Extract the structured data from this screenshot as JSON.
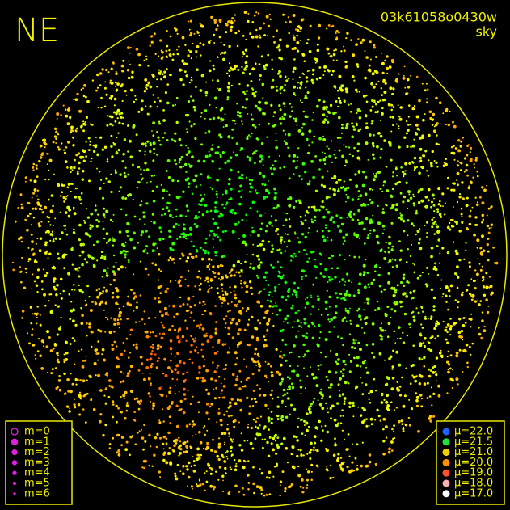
{
  "direction": "NE",
  "frame_id": "03k61058o0430w",
  "frame_type": "sky",
  "magnitude_legend": [
    {
      "label": "m=0",
      "color": "#e020e0"
    },
    {
      "label": "m=1",
      "color": "#e020e0"
    },
    {
      "label": "m=2",
      "color": "#e020e0"
    },
    {
      "label": "m=3",
      "color": "#e020e0"
    },
    {
      "label": "m=4",
      "color": "#e020e0"
    },
    {
      "label": "m=5",
      "color": "#e020e0"
    },
    {
      "label": "m=6",
      "color": "#e020e0"
    }
  ],
  "brightness_legend": [
    {
      "label": "μ=22.0",
      "color": "#2060ff"
    },
    {
      "label": "μ=21.5",
      "color": "#20e040"
    },
    {
      "label": "μ=21.0",
      "color": "#f0d000"
    },
    {
      "label": "μ=20.0",
      "color": "#ff9000"
    },
    {
      "label": "μ=19.0",
      "color": "#ff5030"
    },
    {
      "label": "μ=18.0",
      "color": "#ffb0b0"
    },
    {
      "label": "μ=17.0",
      "color": "#ffffff"
    }
  ]
}
